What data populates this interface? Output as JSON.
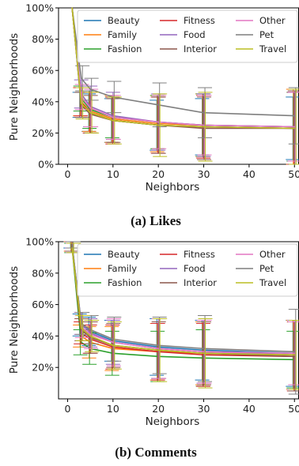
{
  "chart_data": [
    {
      "type": "line",
      "caption": "(a) Likes",
      "xlabel": "Neighbors",
      "ylabel": "Pure Neighborhoods",
      "xlim": [
        -2,
        51
      ],
      "ylim": [
        0,
        100
      ],
      "xticks": [
        0,
        10,
        20,
        30,
        40,
        50
      ],
      "yticks": [
        0,
        20,
        40,
        60,
        80,
        100
      ],
      "yticklabels": [
        "0%",
        "20%",
        "40%",
        "60%",
        "80%",
        "100%"
      ],
      "grid": false,
      "legend_location": "top-right",
      "x": [
        1,
        3,
        5,
        10,
        20,
        30,
        50
      ],
      "series": [
        {
          "name": "Beauty",
          "color": "#1f77b4",
          "values": [
            100,
            38,
            33,
            28,
            25,
            24,
            23
          ],
          "errors": [
            0,
            8,
            12,
            14,
            16,
            18,
            20
          ]
        },
        {
          "name": "Family",
          "color": "#ff7f0e",
          "values": [
            100,
            40,
            34,
            29,
            26,
            25,
            24
          ],
          "errors": [
            0,
            9,
            13,
            15,
            18,
            20,
            24
          ]
        },
        {
          "name": "Fashion",
          "color": "#2ca02c",
          "values": [
            100,
            42,
            35,
            30,
            27,
            25,
            24
          ],
          "errors": [
            0,
            8,
            12,
            13,
            17,
            20,
            22
          ]
        },
        {
          "name": "Fitness",
          "color": "#d62728",
          "values": [
            100,
            40,
            33,
            28,
            25,
            24,
            23
          ],
          "errors": [
            0,
            9,
            13,
            15,
            18,
            20,
            23
          ]
        },
        {
          "name": "Food",
          "color": "#9467bd",
          "values": [
            100,
            45,
            37,
            31,
            27,
            25,
            24
          ],
          "errors": [
            0,
            9,
            13,
            15,
            18,
            20,
            22
          ]
        },
        {
          "name": "Interior",
          "color": "#8c564b",
          "values": [
            100,
            38,
            32,
            28,
            25,
            23,
            23
          ],
          "errors": [
            0,
            8,
            12,
            14,
            18,
            20,
            24
          ]
        },
        {
          "name": "Other",
          "color": "#e377c2",
          "values": [
            100,
            43,
            36,
            30,
            27,
            25,
            24
          ],
          "errors": [
            0,
            8,
            12,
            14,
            17,
            19,
            22
          ]
        },
        {
          "name": "Pet",
          "color": "#7f7f7f",
          "values": [
            100,
            55,
            48,
            43,
            38,
            33,
            31
          ],
          "errors": [
            0,
            8,
            7,
            10,
            14,
            16,
            18
          ]
        },
        {
          "name": "Travel",
          "color": "#bcbd22",
          "values": [
            100,
            39,
            33,
            28,
            25,
            24,
            23
          ],
          "errors": [
            0,
            10,
            13,
            15,
            20,
            22,
            25
          ]
        }
      ]
    },
    {
      "type": "line",
      "caption": "(b) Comments",
      "xlabel": "Neighbors",
      "ylabel": "Pure Neighborhoods",
      "xlim": [
        -2,
        51
      ],
      "ylim": [
        0,
        100
      ],
      "xticks": [
        0,
        10,
        20,
        30,
        40,
        50
      ],
      "yticks": [
        20,
        40,
        60,
        80,
        100
      ],
      "yticklabels": [
        "20%",
        "40%",
        "60%",
        "80%",
        "100%"
      ],
      "grid": false,
      "legend_location": "top-right",
      "x": [
        1,
        3,
        5,
        10,
        20,
        30,
        50
      ],
      "series": [
        {
          "name": "Beauty",
          "color": "#1f77b4",
          "values": [
            98,
            47,
            43,
            37,
            33,
            31,
            29
          ],
          "errors": [
            2,
            7,
            9,
            13,
            18,
            19,
            21
          ]
        },
        {
          "name": "Family",
          "color": "#ff7f0e",
          "values": [
            97,
            40,
            36,
            32,
            30,
            29,
            28
          ],
          "errors": [
            3,
            7,
            10,
            14,
            18,
            20,
            22
          ]
        },
        {
          "name": "Fashion",
          "color": "#2ca02c",
          "values": [
            96,
            36,
            32,
            29,
            27,
            26,
            25
          ],
          "errors": [
            3,
            8,
            10,
            14,
            16,
            18,
            18
          ]
        },
        {
          "name": "Fitness",
          "color": "#d62728",
          "values": [
            97,
            42,
            38,
            33,
            30,
            28,
            27
          ],
          "errors": [
            3,
            7,
            9,
            14,
            18,
            20,
            22
          ]
        },
        {
          "name": "Food",
          "color": "#9467bd",
          "values": [
            98,
            48,
            42,
            36,
            32,
            30,
            28
          ],
          "errors": [
            2,
            7,
            9,
            14,
            19,
            20,
            22
          ]
        },
        {
          "name": "Interior",
          "color": "#8c564b",
          "values": [
            97,
            44,
            39,
            34,
            31,
            29,
            27
          ],
          "errors": [
            3,
            7,
            10,
            14,
            18,
            20,
            22
          ]
        },
        {
          "name": "Other",
          "color": "#e377c2",
          "values": [
            96,
            46,
            41,
            36,
            32,
            30,
            29
          ],
          "errors": [
            3,
            7,
            9,
            15,
            19,
            20,
            20
          ]
        },
        {
          "name": "Pet",
          "color": "#7f7f7f",
          "values": [
            98,
            48,
            44,
            38,
            34,
            32,
            30
          ],
          "errors": [
            2,
            7,
            9,
            14,
            18,
            21,
            27
          ]
        },
        {
          "name": "Travel",
          "color": "#bcbd22",
          "values": [
            96,
            45,
            40,
            34,
            31,
            29,
            28
          ],
          "errors": [
            3,
            8,
            10,
            15,
            20,
            22,
            22
          ]
        }
      ]
    }
  ]
}
